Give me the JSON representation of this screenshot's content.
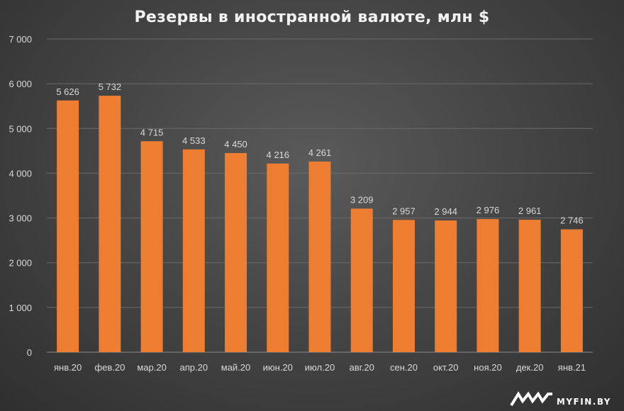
{
  "chart_data": {
    "type": "bar",
    "title": "Резервы в иностранной валюте, млн $",
    "categories": [
      "янв.20",
      "фев.20",
      "мар.20",
      "апр.20",
      "май.20",
      "июн.20",
      "июл.20",
      "авг.20",
      "сен.20",
      "окт.20",
      "ноя.20",
      "дек.20",
      "янв.21"
    ],
    "values": [
      5626,
      5732,
      4715,
      4533,
      4450,
      4216,
      4261,
      3209,
      2957,
      2944,
      2976,
      2961,
      2746
    ],
    "data_labels": [
      "5 626",
      "5 732",
      "4 715",
      "4 533",
      "4 450",
      "4 216",
      "4 261",
      "3 209",
      "2 957",
      "2 944",
      "2 976",
      "2 961",
      "2 746"
    ],
    "yticks": [
      0,
      1000,
      2000,
      3000,
      4000,
      5000,
      6000,
      7000
    ],
    "ytick_labels": [
      "0",
      "1 000",
      "2 000",
      "3 000",
      "4 000",
      "5 000",
      "6 000",
      "7 000"
    ],
    "ylim": [
      0,
      7000
    ],
    "xlabel": "",
    "ylabel": "",
    "grid": true,
    "legend": "none",
    "bar_color": "#ED7D31",
    "grid_color": "#6a6a6a",
    "text_color": "#d9d9d9"
  },
  "watermark": {
    "text": "MYFIN.BY",
    "icon": "myfin-logo-icon"
  }
}
